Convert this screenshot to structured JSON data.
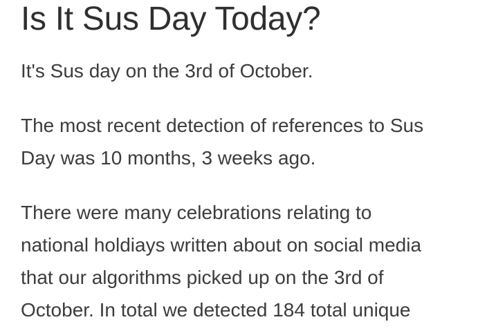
{
  "article": {
    "title": "Is It Sus Day Today?",
    "intro": "It's Sus day on the 3rd of October.",
    "detection_lines": [
      "The most recent detection of references to Sus",
      "Day was 10 months, 3 weeks ago."
    ],
    "celebration_lines": [
      "There were many celebrations relating to",
      "national holdiays written about on social media",
      "that our algorithms picked up on the 3rd of",
      "October. In total we detected 184 total unique"
    ]
  }
}
